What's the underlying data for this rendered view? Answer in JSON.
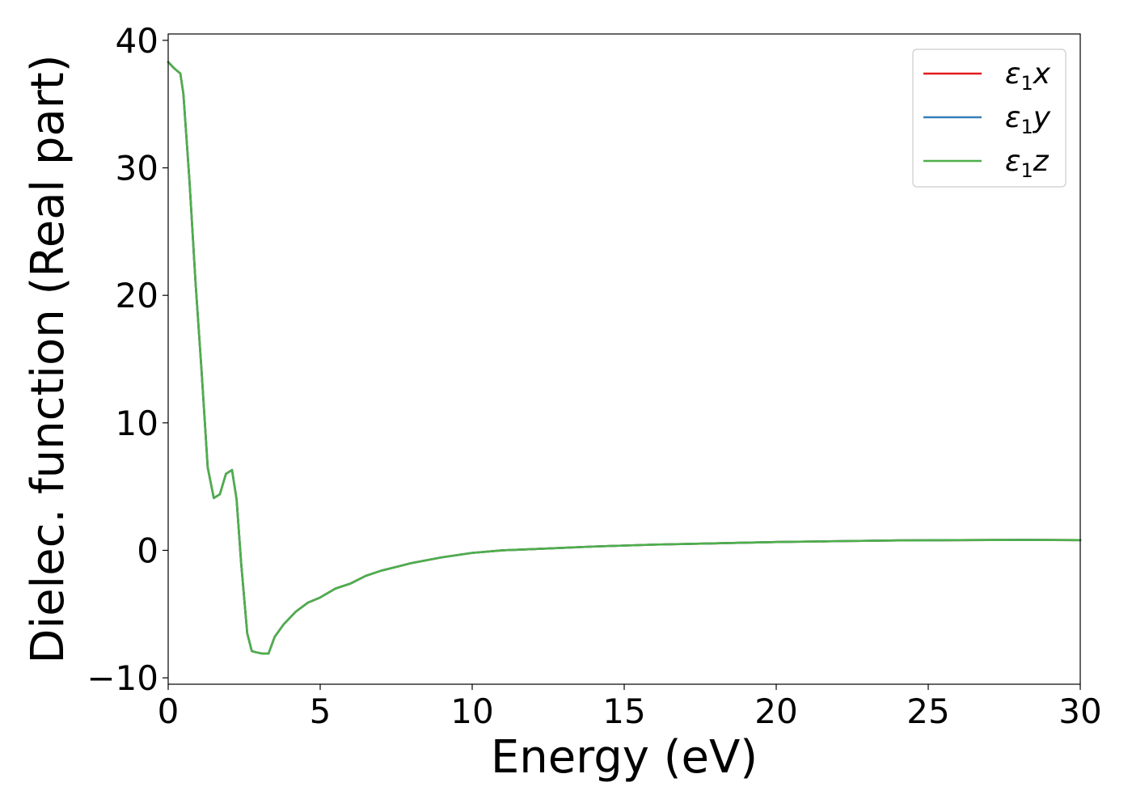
{
  "chart_data": {
    "type": "line",
    "title": "",
    "xlabel": "Energy (eV)",
    "ylabel": "Dielec. function (Real part)",
    "xlim": [
      0,
      30
    ],
    "ylim": [
      -10.5,
      40.5
    ],
    "xticks": [
      0,
      5,
      10,
      15,
      20,
      25,
      30
    ],
    "yticks": [
      -10,
      0,
      10,
      20,
      30,
      40
    ],
    "xtick_labels": [
      "0",
      "5",
      "10",
      "15",
      "20",
      "25",
      "30"
    ],
    "ytick_labels": [
      "−10",
      "0",
      "10",
      "20",
      "30",
      "40"
    ],
    "grid": false,
    "legend_position": "top-right",
    "x": [
      0,
      0.2,
      0.4,
      0.5,
      0.7,
      0.9,
      1.1,
      1.3,
      1.5,
      1.7,
      1.9,
      2.1,
      2.25,
      2.4,
      2.6,
      2.75,
      2.9,
      3.1,
      3.3,
      3.5,
      3.8,
      4.2,
      4.6,
      5.0,
      5.5,
      6.0,
      6.5,
      7.0,
      7.5,
      8.0,
      9.0,
      10.0,
      11.0,
      12.0,
      14.0,
      16.0,
      18.0,
      20.0,
      22.0,
      24.0,
      26.0,
      28.0,
      30.0
    ],
    "series": [
      {
        "name": "x",
        "color": "#e41a1c",
        "values": [
          38.3,
          37.8,
          37.4,
          35.8,
          29.0,
          21.0,
          14.0,
          6.5,
          4.1,
          4.4,
          6.0,
          6.3,
          4.0,
          -1.0,
          -6.5,
          -7.9,
          -8.0,
          -8.1,
          -8.1,
          -6.8,
          -5.8,
          -4.8,
          -4.1,
          -3.7,
          -3.0,
          -2.6,
          -2.0,
          -1.6,
          -1.3,
          -1.0,
          -0.55,
          -0.2,
          0.0,
          0.1,
          0.3,
          0.45,
          0.55,
          0.65,
          0.72,
          0.78,
          0.8,
          0.82,
          0.8
        ]
      },
      {
        "name": "y",
        "color": "#377eb8",
        "values": [
          38.3,
          37.8,
          37.4,
          35.8,
          29.0,
          21.0,
          14.0,
          6.5,
          4.1,
          4.4,
          6.0,
          6.3,
          4.0,
          -1.0,
          -6.5,
          -7.9,
          -8.0,
          -8.1,
          -8.1,
          -6.8,
          -5.8,
          -4.8,
          -4.1,
          -3.7,
          -3.0,
          -2.6,
          -2.0,
          -1.6,
          -1.3,
          -1.0,
          -0.55,
          -0.2,
          0.0,
          0.1,
          0.3,
          0.45,
          0.55,
          0.65,
          0.72,
          0.78,
          0.8,
          0.82,
          0.8
        ]
      },
      {
        "name": "z",
        "color": "#4daf4a",
        "values": [
          38.3,
          37.8,
          37.4,
          35.8,
          29.0,
          21.0,
          14.0,
          6.5,
          4.1,
          4.4,
          6.0,
          6.3,
          4.0,
          -1.0,
          -6.5,
          -7.9,
          -8.0,
          -8.1,
          -8.1,
          -6.8,
          -5.8,
          -4.8,
          -4.1,
          -3.7,
          -3.0,
          -2.6,
          -2.0,
          -1.6,
          -1.3,
          -1.0,
          -0.55,
          -0.2,
          0.0,
          0.1,
          0.3,
          0.45,
          0.55,
          0.65,
          0.72,
          0.78,
          0.8,
          0.82,
          0.8
        ]
      }
    ],
    "legend": {
      "symbol": "ε",
      "subscript": "1",
      "entries": [
        "x",
        "y",
        "z"
      ]
    }
  }
}
